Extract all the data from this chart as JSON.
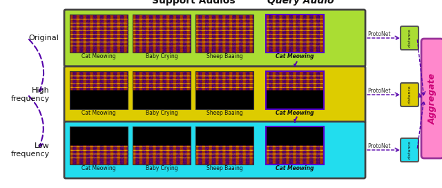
{
  "title_support": "Support Audios",
  "title_query": "Query Audio",
  "row_labels": [
    "Original",
    "High\nfrequency",
    "Low\nfrequency"
  ],
  "support_labels": [
    "Cat Meowing",
    "Baby Crying",
    "Sheep Baaing"
  ],
  "query_label": "Cat Meowing",
  "protonet_label": "ProtoNet",
  "distance_label": "distance",
  "aggregate_label": "Aggregate",
  "row_box_colors": [
    "#aadd33",
    "#ddcc00",
    "#22ddee"
  ],
  "distance_box_colors": [
    "#aadd33",
    "#ddcc00",
    "#22ddee"
  ],
  "aggregate_color": "#ff88cc",
  "arrow_color": "#5500aa",
  "fig_bg": "#ffffff",
  "figsize": [
    6.4,
    2.72
  ],
  "dpi": 100
}
